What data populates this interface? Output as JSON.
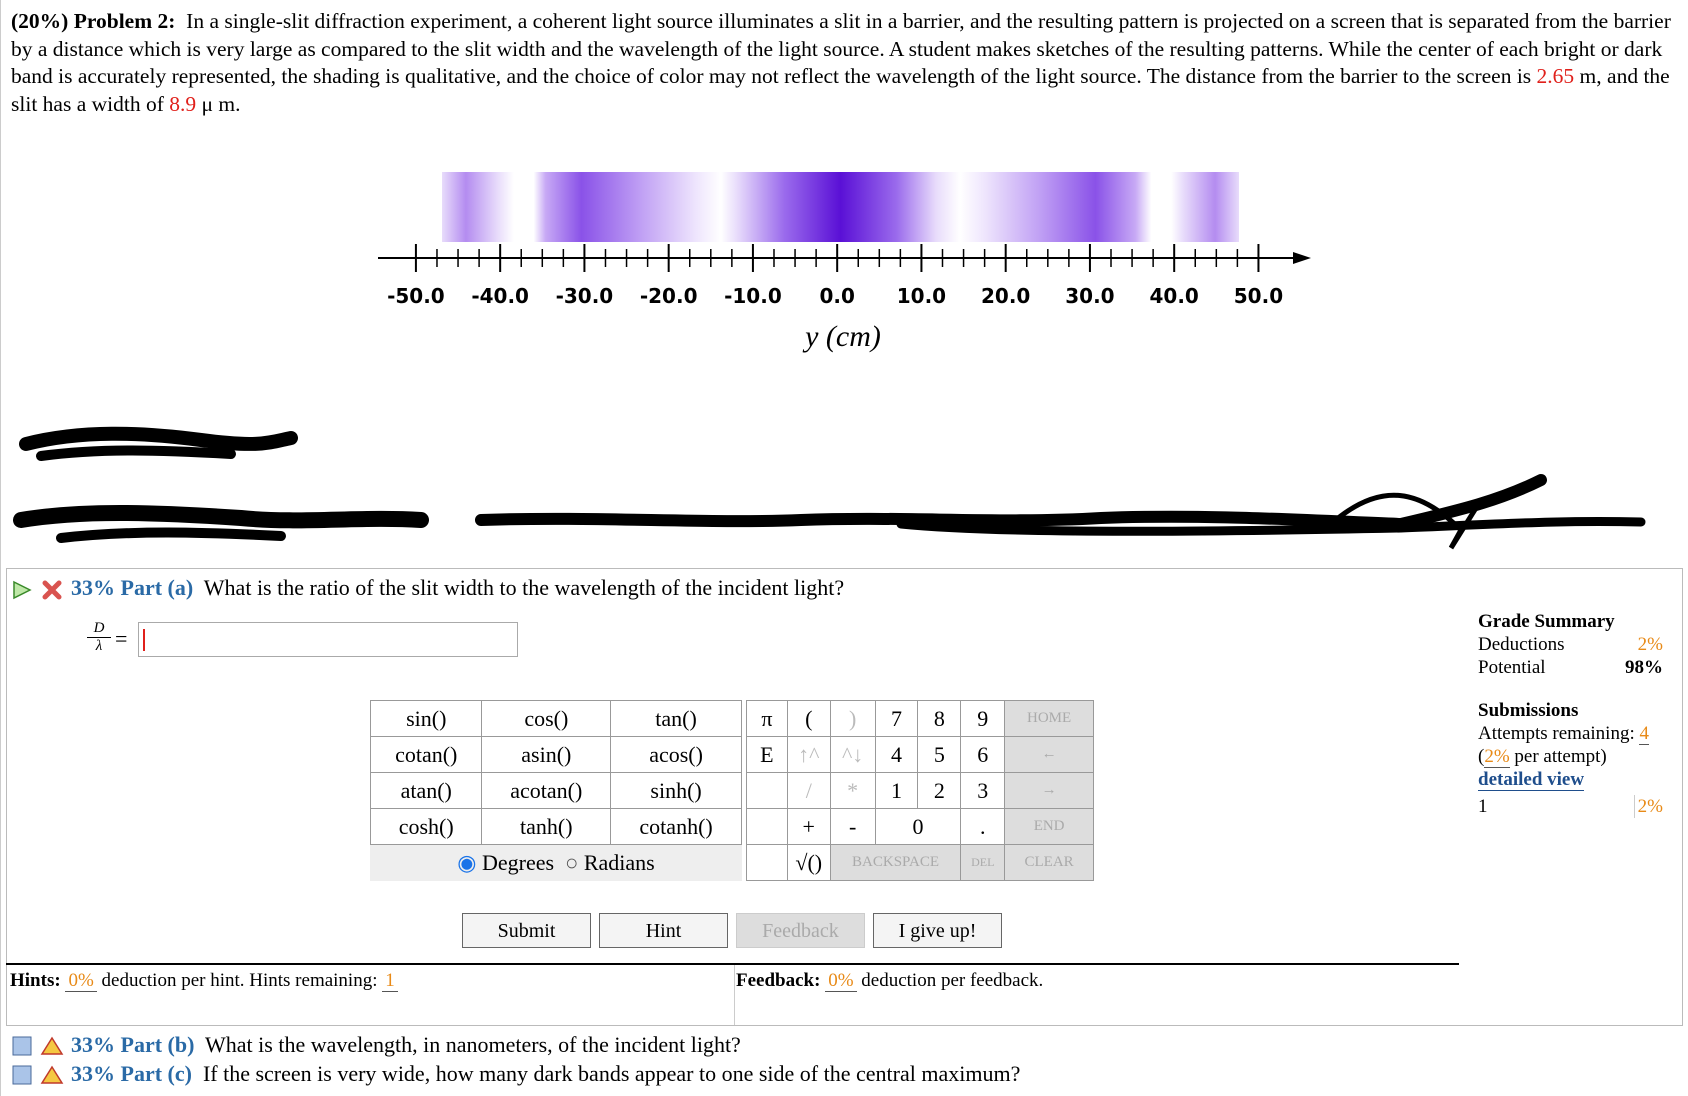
{
  "problem": {
    "label": "(20%) Problem 2:",
    "text": "In a single-slit diffraction experiment, a coherent light source illuminates a slit in a barrier, and the resulting pattern is projected on a screen that is separated from the barrier by a distance which is very large as compared to the slit width and the wavelength of the light source. A student makes sketches of the resulting patterns. While the center of each bright or dark band is accurately represented, the shading is qualitative, and the choice of color may not reflect the wavelength of the light source. The distance from the barrier to the screen is",
    "distance": "2.65",
    "text_mid": "m, and the slit has a width of",
    "width": "8.9",
    "unit": "μ m."
  },
  "figure": {
    "xlabel": "y (cm)",
    "xlim": [
      -54.5,
      56
    ],
    "xticks": [
      {
        "value": -50,
        "label": "-50.0"
      },
      {
        "value": -40,
        "label": "-40.0"
      },
      {
        "value": -30,
        "label": "-30.0"
      },
      {
        "value": -20,
        "label": "-20.0"
      },
      {
        "value": -10,
        "label": "-10.0"
      },
      {
        "value": 0,
        "label": "0.0"
      },
      {
        "value": 10,
        "label": "10.0"
      },
      {
        "value": 20,
        "label": "20.0"
      },
      {
        "value": 30,
        "label": "30.0"
      },
      {
        "value": 40,
        "label": "40.0"
      },
      {
        "value": 50,
        "label": "50.0"
      }
    ]
  },
  "part_a": {
    "label": "33% Part (a)",
    "question": "What is the ratio of the slit width to the wavelength of the incident light?",
    "lhs_num": "D",
    "lhs_den": "λ",
    "eq": "="
  },
  "keypad": {
    "functions": [
      [
        "sin()",
        "cos()",
        "tan()"
      ],
      [
        "cotan()",
        "asin()",
        "acos()"
      ],
      [
        "atan()",
        "acotan()",
        "sinh()"
      ],
      [
        "cosh()",
        "tanh()",
        "cotanh()"
      ]
    ],
    "angle_modes": [
      "Degrees",
      "Radians"
    ],
    "keys": [
      [
        "π",
        "(",
        ")",
        "7",
        "8",
        "9",
        "HOME"
      ],
      [
        "E",
        "↑^",
        "^↓",
        "4",
        "5",
        "6",
        "←"
      ],
      [
        "/",
        "*",
        "1",
        "2",
        "3",
        "→"
      ],
      [
        "+",
        "-",
        "0",
        ".",
        "END"
      ],
      [
        "√()",
        "BACKSPACE",
        "DEL",
        "CLEAR"
      ]
    ]
  },
  "buttons": [
    "Submit",
    "Hint",
    "Feedback",
    "I give up!"
  ],
  "hints": {
    "label": "Hints:",
    "value": "0%",
    "text": "deduction per hint. Hints remaining:",
    "remaining": "1"
  },
  "feedback": {
    "label": "Feedback:",
    "value": "0%",
    "text": "deduction per feedback."
  },
  "grade_summary": {
    "title": "Grade Summary",
    "deductions_label": "Deductions",
    "deductions": "2%",
    "potential_label": "Potential",
    "potential": "98%",
    "submissions_title": "Submissions",
    "attempts_label": "Attempts remaining:",
    "attempts": "4",
    "per_attempt_open": "(",
    "per_attempt": "2%",
    "per_attempt_text": "per attempt)",
    "detailed_view": "detailed view",
    "submission_number": "1",
    "submission_deduction": "2%"
  },
  "part_b": {
    "label": "33% Part (b)",
    "question": "What is the wavelength, in nanometers, of the incident light?"
  },
  "part_c": {
    "label": "33% Part (c)",
    "question": "If the screen is very wide, how many dark bands appear to one side of the central maximum?"
  }
}
